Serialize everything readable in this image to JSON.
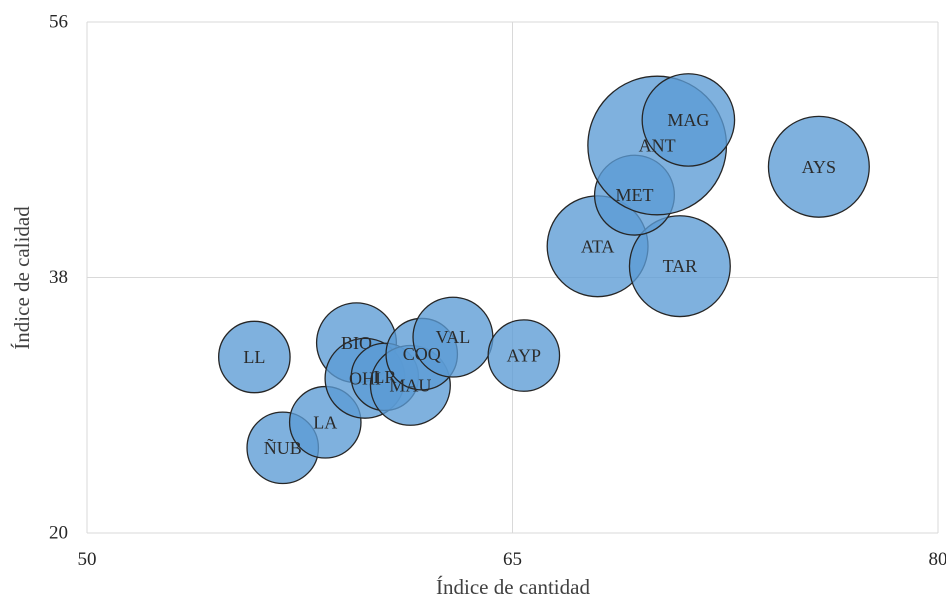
{
  "chart_data": {
    "type": "scatter",
    "subtype": "bubble",
    "title": "",
    "xlabel": "Índice de cantidad",
    "ylabel": "Índice de calidad",
    "xlim": [
      50,
      80
    ],
    "ylim": [
      20,
      56
    ],
    "xticks": [
      "50",
      "65",
      "80"
    ],
    "yticks": [
      "20",
      "38",
      "56"
    ],
    "grid": true,
    "legend": "none",
    "bubble_color": "#5b9bd5",
    "bubble_outline": "#262626",
    "points": [
      {
        "label": "LL",
        "x": 55.9,
        "y": 32.4,
        "size": 0.85
      },
      {
        "label": "ÑUB",
        "x": 56.9,
        "y": 26.0,
        "size": 0.85
      },
      {
        "label": "LA",
        "x": 58.4,
        "y": 27.8,
        "size": 0.85
      },
      {
        "label": "BIO",
        "x": 59.5,
        "y": 33.4,
        "size": 0.95
      },
      {
        "label": "OHI",
        "x": 59.8,
        "y": 30.9,
        "size": 0.95
      },
      {
        "label": "LR",
        "x": 60.5,
        "y": 31.0,
        "size": 0.8
      },
      {
        "label": "MAU",
        "x": 61.4,
        "y": 30.4,
        "size": 0.95
      },
      {
        "label": "COQ",
        "x": 61.8,
        "y": 32.6,
        "size": 0.85
      },
      {
        "label": "VAL",
        "x": 62.9,
        "y": 33.8,
        "size": 0.95
      },
      {
        "label": "AYP",
        "x": 65.4,
        "y": 32.5,
        "size": 0.85
      },
      {
        "label": "ATA",
        "x": 68.0,
        "y": 40.2,
        "size": 1.2
      },
      {
        "label": "TAR",
        "x": 70.9,
        "y": 38.8,
        "size": 1.2
      },
      {
        "label": "MET",
        "x": 69.3,
        "y": 43.8,
        "size": 0.95
      },
      {
        "label": "ANT",
        "x": 70.1,
        "y": 47.3,
        "size": 1.65
      },
      {
        "label": "MAG",
        "x": 71.2,
        "y": 49.1,
        "size": 1.1
      },
      {
        "label": "AYS",
        "x": 75.8,
        "y": 45.8,
        "size": 1.2
      }
    ]
  }
}
